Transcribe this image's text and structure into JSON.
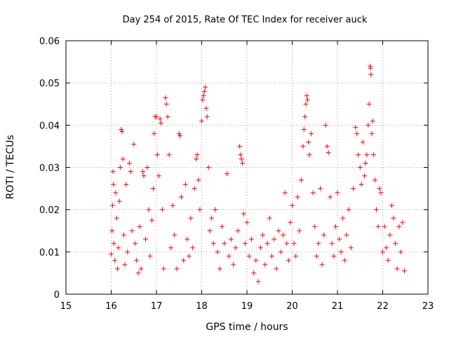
{
  "chart_data": {
    "type": "scatter",
    "title": "Day 254 of 2015, Rate Of TEC Index for receiver auck",
    "xlabel": "GPS time / hours",
    "ylabel": "ROTI / TECUs",
    "xlim": [
      15,
      23
    ],
    "ylim": [
      0,
      0.06
    ],
    "xticks": [
      15,
      16,
      17,
      18,
      19,
      20,
      21,
      22,
      23
    ],
    "yticks": [
      0,
      0.01,
      0.02,
      0.03,
      0.04,
      0.05,
      0.06
    ],
    "xtick_labels": [
      "15",
      "16",
      "17",
      "18",
      "19",
      "20",
      "21",
      "22",
      "23"
    ],
    "ytick_labels": [
      "0",
      "0.01",
      "0.02",
      "0.03",
      "0.04",
      "0.05",
      "0.06"
    ],
    "grid": true,
    "marker": "+",
    "color": "#ff0000",
    "series": [
      {
        "name": "ROTI",
        "points": [
          [
            16.0,
            0.0095
          ],
          [
            16.02,
            0.015
          ],
          [
            16.03,
            0.021
          ],
          [
            16.04,
            0.029
          ],
          [
            16.05,
            0.026
          ],
          [
            16.06,
            0.012
          ],
          [
            16.08,
            0.008
          ],
          [
            16.1,
            0.024
          ],
          [
            16.12,
            0.018
          ],
          [
            16.14,
            0.006
          ],
          [
            16.16,
            0.011
          ],
          [
            16.18,
            0.022
          ],
          [
            16.2,
            0.03
          ],
          [
            16.22,
            0.039
          ],
          [
            16.24,
            0.0385
          ],
          [
            16.26,
            0.032
          ],
          [
            16.28,
            0.014
          ],
          [
            16.3,
            0.007
          ],
          [
            16.33,
            0.026
          ],
          [
            16.36,
            0.01
          ],
          [
            16.4,
            0.031
          ],
          [
            16.43,
            0.029
          ],
          [
            16.46,
            0.015
          ],
          [
            16.5,
            0.0355
          ],
          [
            16.53,
            0.012
          ],
          [
            16.56,
            0.008
          ],
          [
            16.6,
            0.005
          ],
          [
            16.63,
            0.016
          ],
          [
            16.66,
            0.006
          ],
          [
            16.7,
            0.029
          ],
          [
            16.72,
            0.028
          ],
          [
            16.76,
            0.013
          ],
          [
            16.8,
            0.03
          ],
          [
            16.83,
            0.02
          ],
          [
            16.86,
            0.009
          ],
          [
            16.9,
            0.0175
          ],
          [
            16.93,
            0.025
          ],
          [
            16.95,
            0.038
          ],
          [
            16.97,
            0.042
          ],
          [
            17.0,
            0.042
          ],
          [
            17.02,
            0.033
          ],
          [
            17.05,
            0.028
          ],
          [
            17.08,
            0.0415
          ],
          [
            17.1,
            0.0405
          ],
          [
            17.13,
            0.02
          ],
          [
            17.16,
            0.006
          ],
          [
            17.2,
            0.0465
          ],
          [
            17.22,
            0.045
          ],
          [
            17.25,
            0.042
          ],
          [
            17.28,
            0.033
          ],
          [
            17.32,
            0.011
          ],
          [
            17.36,
            0.021
          ],
          [
            17.4,
            0.014
          ],
          [
            17.45,
            0.006
          ],
          [
            17.5,
            0.038
          ],
          [
            17.52,
            0.0375
          ],
          [
            17.55,
            0.023
          ],
          [
            17.6,
            0.008
          ],
          [
            17.64,
            0.026
          ],
          [
            17.68,
            0.013
          ],
          [
            17.72,
            0.009
          ],
          [
            17.76,
            0.018
          ],
          [
            17.8,
            0.011
          ],
          [
            17.84,
            0.025
          ],
          [
            17.88,
            0.032
          ],
          [
            17.9,
            0.033
          ],
          [
            17.93,
            0.027
          ],
          [
            17.96,
            0.02
          ],
          [
            18.0,
            0.041
          ],
          [
            18.02,
            0.046
          ],
          [
            18.04,
            0.047
          ],
          [
            18.06,
            0.048
          ],
          [
            18.08,
            0.049
          ],
          [
            18.1,
            0.044
          ],
          [
            18.12,
            0.042
          ],
          [
            18.15,
            0.03
          ],
          [
            18.18,
            0.015
          ],
          [
            18.22,
            0.018
          ],
          [
            18.26,
            0.012
          ],
          [
            18.3,
            0.02
          ],
          [
            18.35,
            0.01
          ],
          [
            18.4,
            0.006
          ],
          [
            18.45,
            0.016
          ],
          [
            18.5,
            0.012
          ],
          [
            18.56,
            0.0285
          ],
          [
            18.6,
            0.009
          ],
          [
            18.65,
            0.013
          ],
          [
            18.7,
            0.007
          ],
          [
            18.75,
            0.011
          ],
          [
            18.8,
            0.015
          ],
          [
            18.84,
            0.035
          ],
          [
            18.86,
            0.033
          ],
          [
            18.88,
            0.032
          ],
          [
            18.9,
            0.031
          ],
          [
            18.93,
            0.019
          ],
          [
            18.96,
            0.012
          ],
          [
            19.0,
            0.017
          ],
          [
            19.05,
            0.009
          ],
          [
            19.1,
            0.013
          ],
          [
            19.15,
            0.005
          ],
          [
            19.2,
            0.008
          ],
          [
            19.25,
            0.003
          ],
          [
            19.3,
            0.011
          ],
          [
            19.35,
            0.014
          ],
          [
            19.4,
            0.007
          ],
          [
            19.45,
            0.012
          ],
          [
            19.5,
            0.018
          ],
          [
            19.55,
            0.009
          ],
          [
            19.6,
            0.013
          ],
          [
            19.65,
            0.006
          ],
          [
            19.7,
            0.015
          ],
          [
            19.75,
            0.01
          ],
          [
            19.8,
            0.014
          ],
          [
            19.84,
            0.024
          ],
          [
            19.88,
            0.012
          ],
          [
            19.92,
            0.008
          ],
          [
            19.96,
            0.017
          ],
          [
            20.0,
            0.021
          ],
          [
            20.04,
            0.012
          ],
          [
            20.08,
            0.009
          ],
          [
            20.12,
            0.023
          ],
          [
            20.16,
            0.015
          ],
          [
            20.2,
            0.027
          ],
          [
            20.24,
            0.035
          ],
          [
            20.26,
            0.039
          ],
          [
            20.28,
            0.042
          ],
          [
            20.3,
            0.045
          ],
          [
            20.32,
            0.047
          ],
          [
            20.34,
            0.046
          ],
          [
            20.36,
            0.036
          ],
          [
            20.38,
            0.033
          ],
          [
            20.42,
            0.038
          ],
          [
            20.46,
            0.024
          ],
          [
            20.5,
            0.016
          ],
          [
            20.54,
            0.009
          ],
          [
            20.58,
            0.012
          ],
          [
            20.62,
            0.025
          ],
          [
            20.66,
            0.007
          ],
          [
            20.7,
            0.014
          ],
          [
            20.74,
            0.04
          ],
          [
            20.77,
            0.035
          ],
          [
            20.8,
            0.0335
          ],
          [
            20.84,
            0.023
          ],
          [
            20.88,
            0.012
          ],
          [
            20.92,
            0.009
          ],
          [
            20.96,
            0.016
          ],
          [
            21.0,
            0.024
          ],
          [
            21.04,
            0.013
          ],
          [
            21.08,
            0.01
          ],
          [
            21.12,
            0.018
          ],
          [
            21.16,
            0.008
          ],
          [
            21.2,
            0.014
          ],
          [
            21.25,
            0.02
          ],
          [
            21.3,
            0.011
          ],
          [
            21.35,
            0.025
          ],
          [
            21.4,
            0.0395
          ],
          [
            21.43,
            0.038
          ],
          [
            21.46,
            0.033
          ],
          [
            21.5,
            0.03
          ],
          [
            21.53,
            0.026
          ],
          [
            21.56,
            0.036
          ],
          [
            21.6,
            0.028
          ],
          [
            21.62,
            0.031
          ],
          [
            21.65,
            0.033
          ],
          [
            21.68,
            0.04
          ],
          [
            21.7,
            0.045
          ],
          [
            21.72,
            0.054
          ],
          [
            21.73,
            0.0535
          ],
          [
            21.74,
            0.052
          ],
          [
            21.76,
            0.038
          ],
          [
            21.78,
            0.041
          ],
          [
            21.8,
            0.033
          ],
          [
            21.83,
            0.027
          ],
          [
            21.86,
            0.02
          ],
          [
            21.9,
            0.016
          ],
          [
            21.93,
            0.025
          ],
          [
            21.96,
            0.024
          ],
          [
            22.0,
            0.01
          ],
          [
            22.04,
            0.016
          ],
          [
            22.08,
            0.011
          ],
          [
            22.12,
            0.008
          ],
          [
            22.16,
            0.014
          ],
          [
            22.2,
            0.021
          ],
          [
            22.24,
            0.018
          ],
          [
            22.28,
            0.012
          ],
          [
            22.32,
            0.006
          ],
          [
            22.36,
            0.016
          ],
          [
            22.4,
            0.01
          ],
          [
            22.44,
            0.017
          ],
          [
            22.48,
            0.0055
          ]
        ]
      }
    ]
  }
}
